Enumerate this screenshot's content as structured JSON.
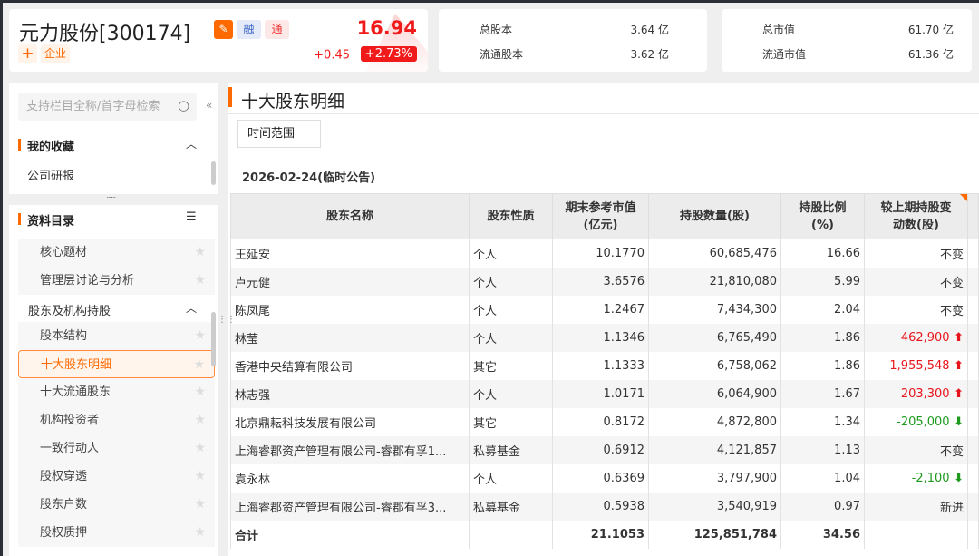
{
  "stock": {
    "name": "元力股份[300174]",
    "tag_margin": "融",
    "tag_connect": "通",
    "tag_add": "+",
    "tag_enterprise": "企业",
    "price": "16.94",
    "change": "+0.45",
    "change_pct": "+2.73%",
    "price_color": "#f01a1a"
  },
  "stats": [
    {
      "label": "总股本",
      "value": "3.64 亿"
    },
    {
      "label": "流通股本",
      "value": "3.62 亿"
    },
    {
      "label": "总市值",
      "value": "61.70 亿"
    },
    {
      "label": "流通市值",
      "value": "61.36 亿"
    }
  ],
  "sidebar": {
    "search_placeholder": "支持栏目全称/首字母检索",
    "favorites_title": "我的收藏",
    "favorites": [
      "公司研报"
    ],
    "catalog_title": "资料目录",
    "items": [
      {
        "label": "核心题材"
      },
      {
        "label": "管理层讨论与分析"
      }
    ],
    "group": "股东及机构持股",
    "group_items": [
      {
        "label": "股本结构"
      },
      {
        "label": "十大股东明细",
        "selected": true
      },
      {
        "label": "十大流通股东"
      },
      {
        "label": "机构投资者"
      },
      {
        "label": "一致行动人"
      },
      {
        "label": "股权穿透"
      },
      {
        "label": "股东户数"
      },
      {
        "label": "股权质押"
      }
    ]
  },
  "main": {
    "title": "十大股东明细",
    "time_range": "时间范围",
    "date": "2026-02-24(临时公告)",
    "columns": [
      "股东名称",
      "股东性质",
      "期末参考市值\n(亿元)",
      "持股数量(股)",
      "持股比例\n(%)",
      "较上期持股变\n动数(股)"
    ],
    "rows": [
      [
        "王延安",
        "个人",
        "10.1770",
        "60,685,476",
        "16.66",
        "不变",
        ""
      ],
      [
        "卢元健",
        "个人",
        "3.6576",
        "21,810,080",
        "5.99",
        "不变",
        ""
      ],
      [
        "陈凤尾",
        "个人",
        "1.2467",
        "7,434,300",
        "2.04",
        "不变",
        ""
      ],
      [
        "林莹",
        "个人",
        "1.1346",
        "6,765,490",
        "1.86",
        "462,900",
        "up"
      ],
      [
        "香港中央结算有限公司",
        "其它",
        "1.1333",
        "6,758,062",
        "1.86",
        "1,955,548",
        "up"
      ],
      [
        "林志强",
        "个人",
        "1.0171",
        "6,064,900",
        "1.67",
        "203,300",
        "up"
      ],
      [
        "北京鼎耘科技发展有限公司",
        "其它",
        "0.8172",
        "4,872,800",
        "1.34",
        "-205,000",
        "down"
      ],
      [
        "上海睿郡资产管理有限公司-睿郡有孚1...",
        "私募基金",
        "0.6912",
        "4,121,857",
        "1.13",
        "不变",
        ""
      ],
      [
        "袁永林",
        "个人",
        "0.6369",
        "3,797,900",
        "1.04",
        "-2,100",
        "down"
      ],
      [
        "上海睿郡资产管理有限公司-睿郡有孚3...",
        "私募基金",
        "0.5938",
        "3,540,919",
        "0.97",
        "新进",
        ""
      ]
    ],
    "total": [
      "合计",
      "",
      "21.1053",
      "125,851,784",
      "34.56",
      ""
    ]
  }
}
